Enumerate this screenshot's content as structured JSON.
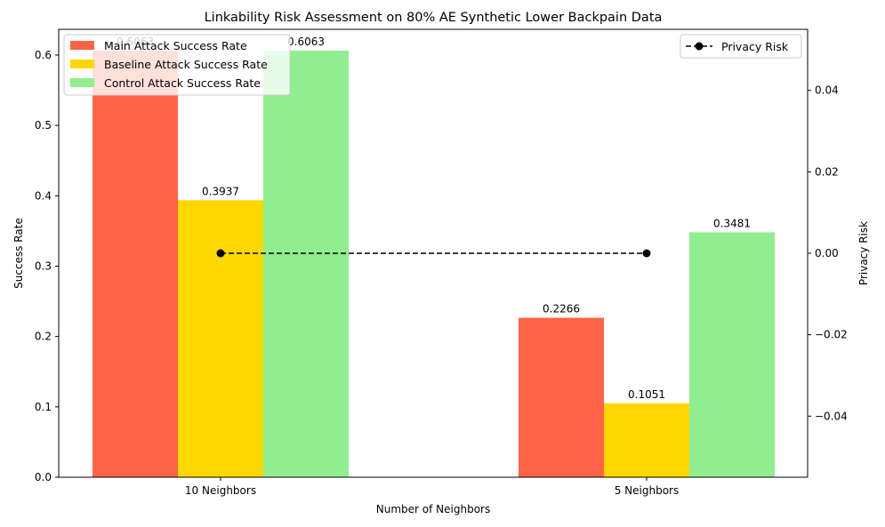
{
  "chart_data": {
    "type": "bar",
    "title": "Linkability Risk Assessment on 80% AE Synthetic Lower Backpain Data",
    "xlabel": "Number of Neighbors",
    "ylabel": "Success Rate",
    "y2label": "Privacy Risk",
    "categories": [
      "10 Neighbors",
      "5 Neighbors"
    ],
    "ylim": [
      0,
      0.6366
    ],
    "y2lim": [
      -0.055,
      0.055
    ],
    "yticks": [
      0.0,
      0.1,
      0.2,
      0.3,
      0.4,
      0.5,
      0.6
    ],
    "ytick_labels": [
      "0.0",
      "0.1",
      "0.2",
      "0.3",
      "0.4",
      "0.5",
      "0.6"
    ],
    "y2ticks": [
      -0.04,
      -0.02,
      0.0,
      0.02,
      0.04
    ],
    "y2tick_labels": [
      "−0.04",
      "−0.02",
      "0.00",
      "0.02",
      "0.04"
    ],
    "series": [
      {
        "name": "Main Attack Success Rate",
        "values": [
          0.6063,
          0.2266
        ],
        "labels": [
          "0.6063",
          "0.2266"
        ],
        "color": "#ff6347"
      },
      {
        "name": "Baseline Attack Success Rate",
        "values": [
          0.3937,
          0.1051
        ],
        "labels": [
          "0.3937",
          "0.1051"
        ],
        "color": "#ffd700"
      },
      {
        "name": "Control Attack Success Rate",
        "values": [
          0.6063,
          0.3481
        ],
        "labels": [
          "0.6063",
          "0.3481"
        ],
        "color": "#90ee90"
      }
    ],
    "line_series": {
      "name": "Privacy Risk",
      "values": [
        0.0,
        0.0
      ],
      "color": "#000000",
      "style": "dashed",
      "marker": "circle",
      "axis": "right"
    },
    "legend_left": "upper-left",
    "legend_right": "upper-right",
    "grid": false
  }
}
